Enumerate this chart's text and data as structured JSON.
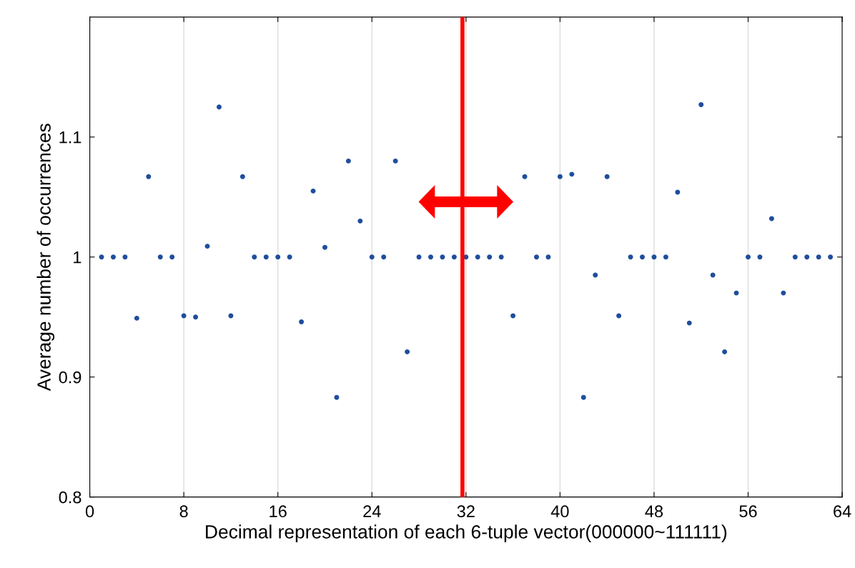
{
  "chart_data": {
    "type": "scatter",
    "xlabel": "Decimal representation of each 6-tuple vector(000000~111111)",
    "ylabel": "Average number of occurrences",
    "x": [
      1,
      2,
      3,
      4,
      5,
      6,
      7,
      8,
      9,
      10,
      11,
      12,
      13,
      14,
      15,
      16,
      17,
      18,
      19,
      20,
      21,
      22,
      23,
      24,
      25,
      26,
      27,
      28,
      29,
      30,
      31,
      32,
      33,
      34,
      35,
      36,
      37,
      38,
      39,
      40,
      41,
      42,
      43,
      44,
      45,
      46,
      47,
      48,
      49,
      50,
      51,
      52,
      53,
      54,
      55,
      56,
      57,
      58,
      59,
      60,
      61,
      62,
      63
    ],
    "series": [
      {
        "color": "#1f4e9c",
        "values": [
          1.0,
          1.0,
          1.0,
          0.949,
          1.067,
          1.0,
          1.0,
          0.951,
          0.95,
          1.009,
          1.125,
          0.951,
          1.067,
          1.0,
          1.0,
          1.0,
          1.0,
          0.946,
          1.055,
          1.008,
          0.883,
          1.08,
          1.03,
          1.0,
          1.0,
          1.08,
          0.921,
          1.0,
          1.0,
          1.0,
          1.0,
          1.0,
          1.0,
          1.0,
          1.0,
          0.951,
          1.067,
          1.0,
          1.0,
          1.067,
          1.069,
          0.883,
          0.985,
          1.067,
          0.951,
          1.0,
          1.0,
          1.0,
          1.0,
          1.054,
          0.945,
          1.127,
          0.985,
          0.921,
          0.97,
          1.0,
          1.0,
          1.032,
          0.97,
          1.0,
          1.0,
          1.0,
          1.0
        ]
      }
    ],
    "xlim": [
      0,
      64
    ],
    "xticks": [
      0,
      8,
      16,
      24,
      32,
      40,
      48,
      56,
      64
    ],
    "ylim": [
      0.8,
      1.2
    ],
    "yticks": [
      0.8,
      0.9,
      {
        "value": 1.0,
        "label": "1"
      },
      1.1
    ],
    "grid": "x",
    "marker": "circle",
    "ref_lines": [
      {
        "axis": "x",
        "value": 31.7,
        "color": "#ff0000"
      }
    ]
  }
}
